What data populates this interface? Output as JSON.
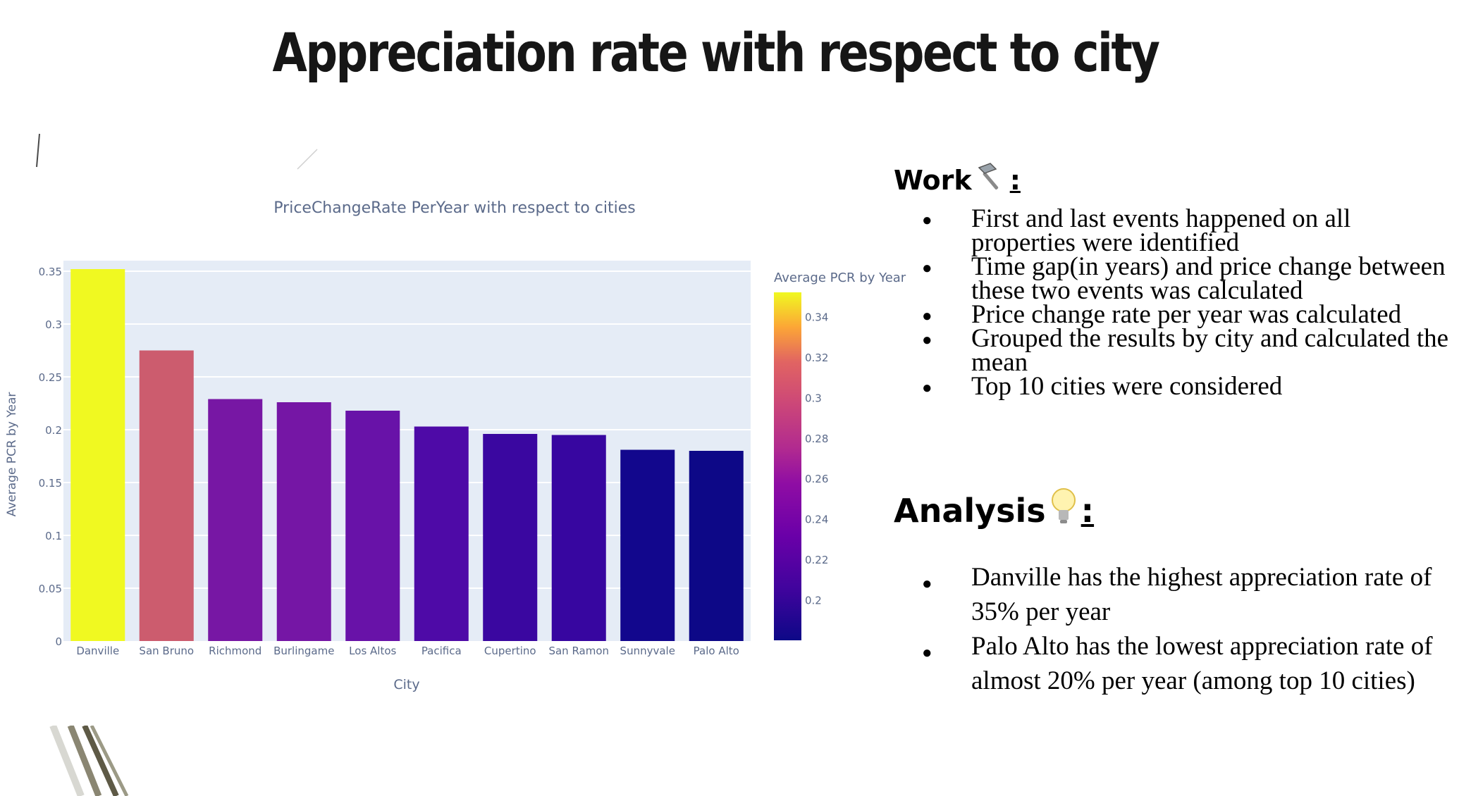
{
  "slide": {
    "title": "Appreciation rate with respect to city"
  },
  "work": {
    "heading": "Work",
    "icon": "hammer-icon",
    "colon": ":",
    "items": [
      "First and last events happened on all properties were identified",
      "Time gap(in years) and price change between these two events was calculated",
      "Price change rate per year was calculated",
      "Grouped the results by city and calculated the mean",
      "Top 10 cities were considered"
    ]
  },
  "analysis": {
    "heading": "Analysis",
    "icon": "lightbulb-icon",
    "colon": ":",
    "items": [
      "Danville has the highest appreciation rate of 35% per year",
      "Palo Alto has the lowest appreciation rate of almost 20% per year (among top 10 cities)"
    ]
  },
  "chart_data": {
    "type": "bar",
    "title": "PriceChangeRate PerYear with respect to cities",
    "xlabel": "City",
    "ylabel": "Average PCR by Year",
    "categories": [
      "Danville",
      "San Bruno",
      "Richmond",
      "Burlingame",
      "Los Altos",
      "Pacifica",
      "Cupertino",
      "San Ramon",
      "Sunnyvale",
      "Palo Alto"
    ],
    "values": [
      0.352,
      0.275,
      0.229,
      0.226,
      0.218,
      0.203,
      0.196,
      0.195,
      0.181,
      0.18
    ],
    "ylim": [
      0,
      0.36
    ],
    "yticks": [
      0,
      0.05,
      0.1,
      0.15,
      0.2,
      0.25,
      0.3,
      0.35
    ],
    "ytick_labels": [
      "0",
      "0.05",
      "0.1",
      "0.15",
      "0.2",
      "0.25",
      "0.3",
      "0.35"
    ],
    "grid": true,
    "plot_background": "#e5ecf6",
    "colorscale": "plasma",
    "colorbar": {
      "title": "Average PCR by Year",
      "range": [
        0.18,
        0.352
      ],
      "ticks": [
        0.2,
        0.22,
        0.24,
        0.26,
        0.28,
        0.3,
        0.32,
        0.34
      ],
      "tick_labels": [
        "0.2",
        "0.22",
        "0.24",
        "0.26",
        "0.28",
        "0.3",
        "0.32",
        "0.34"
      ]
    },
    "colors": [
      "#f0f921",
      "#cc5c6e",
      "#7717a4",
      "#7516a5",
      "#6812a8",
      "#4e0aa7",
      "#3a07a0",
      "#3706a0",
      "#12078d",
      "#0d0887"
    ]
  }
}
